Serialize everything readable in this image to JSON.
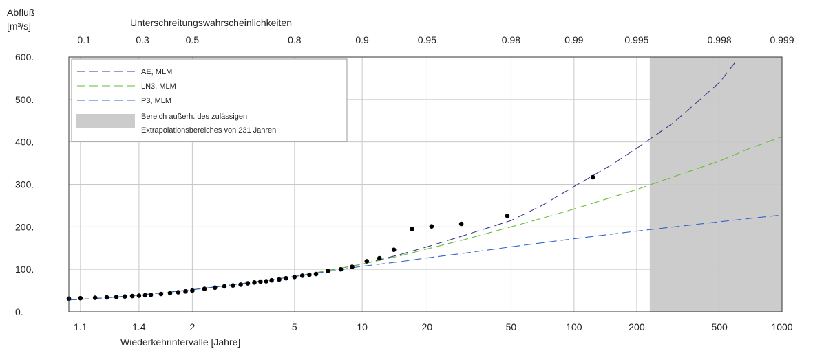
{
  "chart_data": {
    "type": "line",
    "ylabel_line1": "Abfluß",
    "ylabel_line2": "[m³/s]",
    "xlabel": "Wiederkehrintervalle [Jahre]",
    "top_axis_title": "Unterschreitungswahrscheinlichkeiten",
    "x_scale": "gumbel",
    "xlim": [
      1.07,
      1000
    ],
    "ylim": [
      0,
      600
    ],
    "grid": true,
    "x_ticks": [
      1.1,
      1.4,
      2,
      5,
      10,
      20,
      50,
      100,
      200,
      500,
      1000
    ],
    "x_tick_labels": [
      "1.1",
      "1.4",
      "2",
      "5",
      "10",
      "20",
      "50",
      "100",
      "200",
      "500",
      "1000"
    ],
    "y_ticks": [
      0,
      100,
      200,
      300,
      400,
      500,
      600
    ],
    "y_tick_labels": [
      "0.",
      "100.",
      "200.",
      "300.",
      "400.",
      "500.",
      "600."
    ],
    "top_ticks": [
      0.1,
      0.3,
      0.5,
      0.8,
      0.9,
      0.95,
      0.98,
      0.99,
      0.995,
      0.998,
      0.999
    ],
    "top_tick_labels": [
      "0.1",
      "0.3",
      "0.5",
      "0.8",
      "0.9",
      "0.95",
      "0.98",
      "0.99",
      "0.995",
      "0.998",
      "0.999"
    ],
    "legend_placement": "top-left",
    "shaded_region": {
      "x_from": 231,
      "x_to": 1000,
      "color": "#cccccc",
      "label_line1": "Bereich außerh. des zulässigen",
      "label_line2": "Extrapolationsbereiches von 231 Jahren"
    },
    "series": [
      {
        "name": "AE, MLM",
        "color": "#3a3a8c",
        "x": [
          1.07,
          1.2,
          1.5,
          2,
          3,
          5,
          7,
          10,
          15,
          20,
          30,
          50,
          70,
          100,
          150,
          200,
          300,
          500,
          600
        ],
        "y": [
          28,
          33,
          42,
          52,
          66,
          83,
          97,
          112,
          135,
          153,
          180,
          215,
          250,
          295,
          345,
          385,
          445,
          540,
          590
        ]
      },
      {
        "name": "LN3, MLM",
        "color": "#66bb33",
        "x": [
          1.07,
          1.2,
          1.5,
          2,
          3,
          5,
          7,
          10,
          15,
          20,
          30,
          50,
          70,
          100,
          200,
          300,
          500,
          700,
          1000
        ],
        "y": [
          28,
          33,
          42,
          52,
          66,
          83,
          97,
          112,
          132,
          148,
          170,
          200,
          220,
          242,
          288,
          318,
          355,
          385,
          412
        ]
      },
      {
        "name": "P3, MLM",
        "color": "#3366cc",
        "x": [
          1.07,
          1.2,
          1.5,
          2,
          3,
          5,
          7,
          10,
          15,
          20,
          30,
          50,
          100,
          200,
          500,
          1000
        ],
        "y": [
          28,
          33,
          42,
          52,
          66,
          83,
          95,
          107,
          118,
          127,
          138,
          153,
          172,
          190,
          212,
          228
        ]
      }
    ],
    "observations": {
      "color": "#000000",
      "x": [
        1.07,
        1.1,
        1.15,
        1.2,
        1.25,
        1.3,
        1.35,
        1.4,
        1.45,
        1.5,
        1.6,
        1.7,
        1.8,
        1.9,
        2.0,
        2.2,
        2.4,
        2.6,
        2.8,
        3.0,
        3.2,
        3.4,
        3.6,
        3.8,
        4.0,
        4.3,
        4.6,
        5.0,
        5.4,
        5.8,
        6.2,
        7.0,
        8.0,
        9.0,
        10.5,
        12.0,
        14.0,
        17.0,
        21.0,
        29.0,
        48.0,
        123.0
      ],
      "y": [
        31,
        32,
        33,
        34,
        35,
        36,
        37,
        38,
        39,
        40,
        42,
        44,
        46,
        48,
        50,
        54,
        57,
        60,
        62,
        64,
        67,
        69,
        71,
        72,
        74,
        76,
        79,
        82,
        85,
        87,
        89,
        96,
        100,
        106,
        119,
        126,
        146,
        195,
        201,
        207,
        226,
        317
      ]
    }
  }
}
